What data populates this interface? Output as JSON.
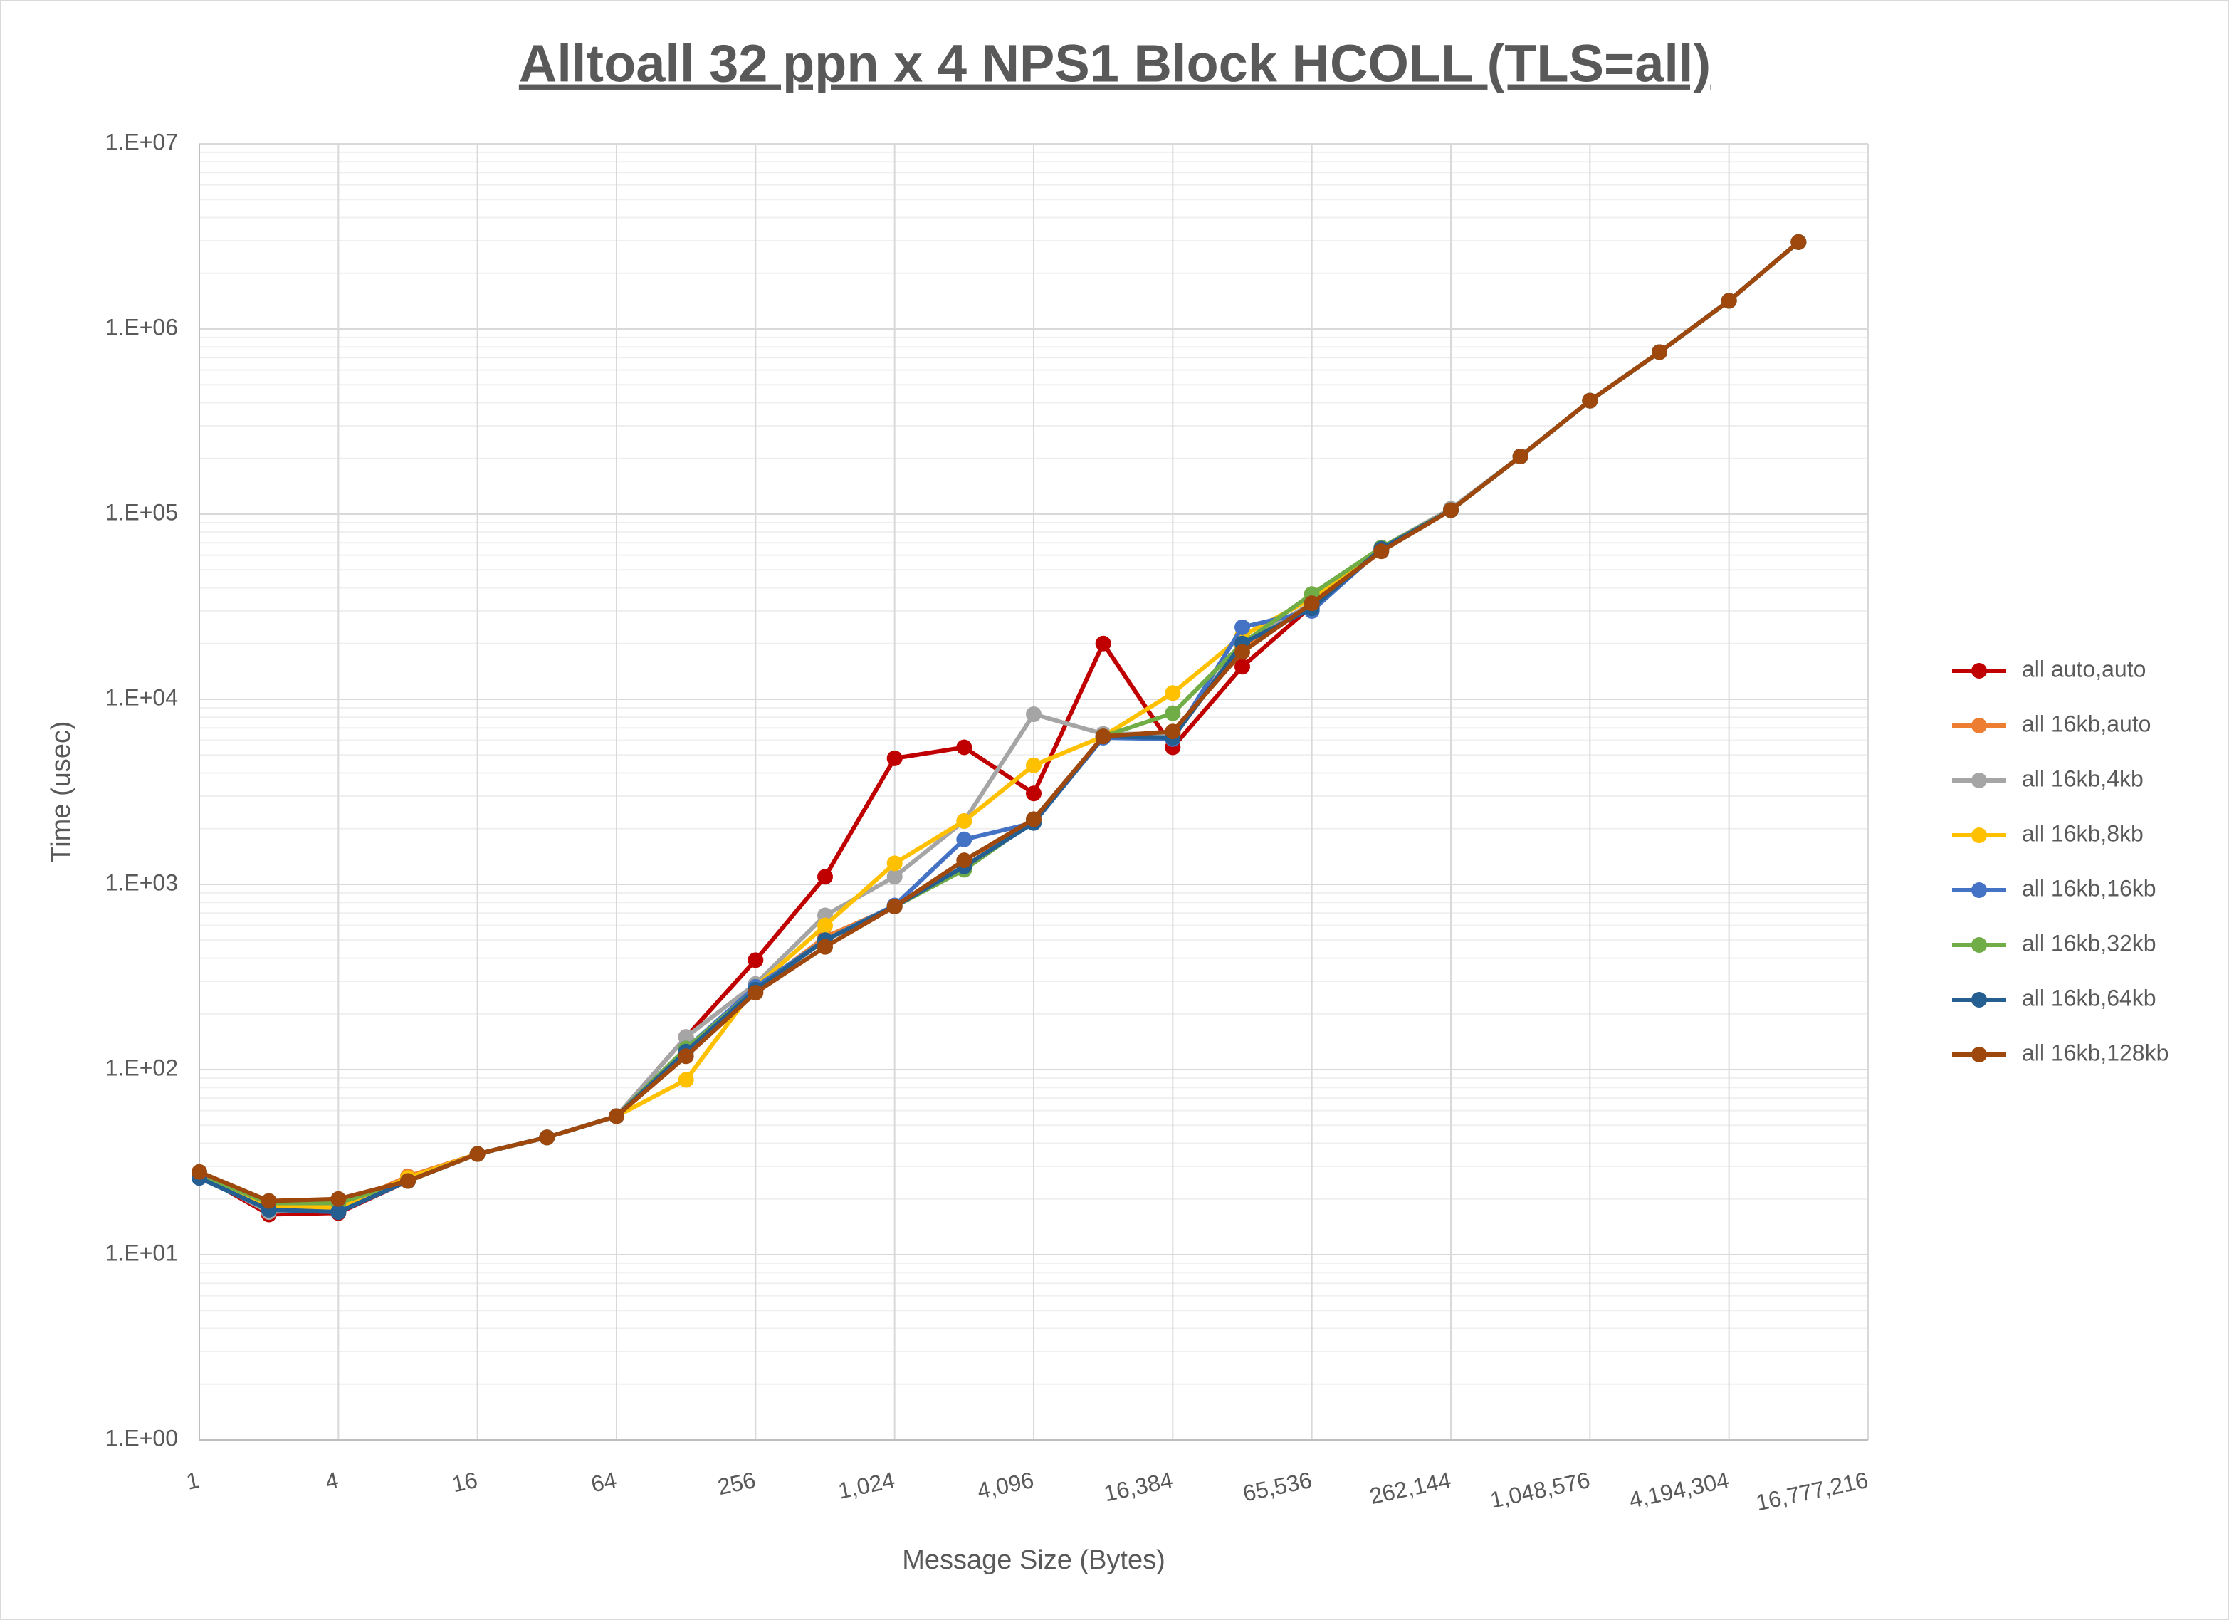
{
  "chart_data": {
    "type": "line",
    "title": "Alltoall 32 ppn x 4 NPS1 Block HCOLL (TLS=all)",
    "x_label": "Message Size (Bytes)",
    "y_label": "Time (usec)",
    "xscale": "log",
    "yscale": "log",
    "grid": true,
    "minor_grid": true,
    "legend": "right",
    "x": [
      1,
      2,
      4,
      8,
      16,
      32,
      64,
      128,
      256,
      512,
      1024,
      2048,
      4096,
      8192,
      16384,
      32768,
      65536,
      131072,
      262144,
      524288,
      1048576,
      2097152,
      4194304,
      8388608
    ],
    "xlim": [
      1,
      16777216
    ],
    "xticks": [
      1,
      4,
      16,
      64,
      256,
      {
        "value": 1024,
        "label": "1,024"
      },
      {
        "value": 4096,
        "label": "4,096"
      },
      {
        "value": 16384,
        "label": "16,384"
      },
      {
        "value": 65536,
        "label": "65,536"
      },
      {
        "value": 262144,
        "label": "262,144"
      },
      {
        "value": 1048576,
        "label": "1,048,576"
      },
      {
        "value": 4194304,
        "label": "4,194,304"
      },
      {
        "value": 16777216,
        "label": "16,777,216"
      }
    ],
    "ylim": [
      1,
      10000000
    ],
    "yticks": [
      {
        "value": 1,
        "label": "1.E+00"
      },
      {
        "value": 10,
        "label": "1.E+01"
      },
      {
        "value": 100,
        "label": "1.E+02"
      },
      {
        "value": 1000,
        "label": "1.E+03"
      },
      {
        "value": 10000,
        "label": "1.E+04"
      },
      {
        "value": 100000,
        "label": "1.E+05"
      },
      {
        "value": 1000000,
        "label": "1.E+06"
      },
      {
        "value": 10000000,
        "label": "1.E+07"
      }
    ],
    "series": [
      {
        "name": "all auto,auto",
        "color": "#c00000",
        "values": [
          27,
          16.5,
          16.8,
          25,
          35,
          43,
          56,
          150,
          390,
          1100,
          4800,
          5500,
          3100,
          20000,
          5500,
          15000,
          32000,
          65000,
          105000,
          205000,
          410000,
          750000,
          1420000,
          2950000
        ]
      },
      {
        "name": "all 16kb,auto",
        "color": "#ed7d31",
        "values": [
          27,
          18,
          18,
          26.5,
          35,
          43,
          56,
          130,
          270,
          520,
          760,
          1250,
          2200,
          6300,
          6500,
          19000,
          33000,
          65000,
          106000,
          205000,
          410000,
          750000,
          1420000,
          2950000
        ]
      },
      {
        "name": "all 16kb,4kb",
        "color": "#a5a5a5",
        "values": [
          27,
          17,
          18,
          25,
          35,
          43,
          56,
          150,
          290,
          680,
          1100,
          2200,
          8300,
          6500,
          6500,
          20000,
          33000,
          66000,
          107000,
          205000,
          410000,
          750000,
          1420000,
          2950000
        ]
      },
      {
        "name": "all 16kb,8kb",
        "color": "#ffc000",
        "values": [
          27,
          18,
          18,
          26,
          35,
          43,
          56,
          88,
          280,
          600,
          1300,
          2200,
          4400,
          6300,
          10800,
          22000,
          35000,
          65000,
          105000,
          205000,
          410000,
          750000,
          1420000,
          2950000
        ]
      },
      {
        "name": "all 16kb,16kb",
        "color": "#4472c4",
        "values": [
          26,
          17.5,
          17,
          25,
          35,
          43,
          56,
          130,
          280,
          500,
          770,
          1750,
          2150,
          6200,
          6100,
          24500,
          30000,
          65000,
          105000,
          205000,
          410000,
          750000,
          1420000,
          2950000
        ]
      },
      {
        "name": "all 16kb,32kb",
        "color": "#70ad47",
        "values": [
          27,
          19,
          19,
          25,
          35,
          43,
          56,
          130,
          270,
          500,
          760,
          1200,
          2200,
          6300,
          8400,
          20000,
          37000,
          66000,
          105000,
          205000,
          410000,
          750000,
          1420000,
          2950000
        ]
      },
      {
        "name": "all 16kb,64kb",
        "color": "#255e91",
        "values": [
          26,
          17.5,
          17,
          25,
          35,
          43,
          56,
          125,
          270,
          500,
          760,
          1250,
          2150,
          6300,
          6200,
          20000,
          31000,
          65000,
          105000,
          205000,
          410000,
          750000,
          1420000,
          2950000
        ]
      },
      {
        "name": "all 16kb,128kb",
        "color": "#9e480e",
        "values": [
          28,
          19.5,
          20,
          25,
          35,
          43,
          56,
          118,
          260,
          460,
          760,
          1350,
          2250,
          6300,
          6700,
          18000,
          33000,
          63000,
          105000,
          205000,
          410000,
          750000,
          1420000,
          2950000
        ]
      }
    ]
  }
}
